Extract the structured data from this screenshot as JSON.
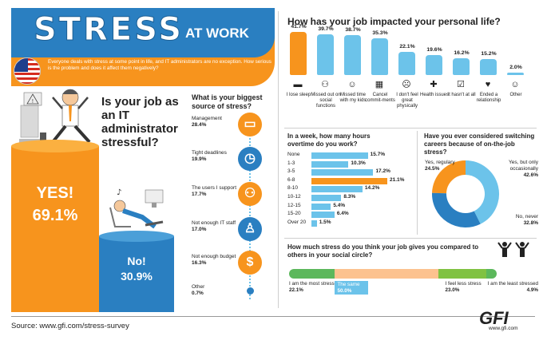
{
  "header": {
    "title_main": "STRESS",
    "title_sub": "AT WORK",
    "intro": "Everyone deals with stress at some point in life, and IT administrators are no exception. How serious is the problem and does it affect them negatively?"
  },
  "colors": {
    "orange": "#f7941d",
    "blue": "#2a7fc1",
    "light_blue": "#6cc3ea"
  },
  "source_text": "Source: www.gfi.com/stress-survey",
  "brand": {
    "logo": "GFI",
    "url": "www.gfi.com"
  },
  "chart_data": [
    {
      "type": "bar",
      "title": "Is your job as an IT administrator stressful?",
      "categories": [
        "YES!",
        "No!"
      ],
      "values": [
        69.1,
        30.9
      ],
      "value_labels": [
        "69.1%",
        "30.9%"
      ]
    },
    {
      "type": "table",
      "title": "What is your biggest source of stress?",
      "icons": [
        "laptop-icon",
        "clock-icon",
        "users-icon",
        "it-staff-icon",
        "money-bag-icon",
        "dot-icon"
      ],
      "rows": [
        {
          "label": "Management",
          "pct": "28.4%",
          "value": 28.4
        },
        {
          "label": "Tight deadlines",
          "pct": "19.9%",
          "value": 19.9
        },
        {
          "label": "The users I support",
          "pct": "17.7%",
          "value": 17.7
        },
        {
          "label": "Not enough IT staff",
          "pct": "17.0%",
          "value": 17.0
        },
        {
          "label": "Not enough budget",
          "pct": "16.3%",
          "value": 16.3
        },
        {
          "label": "Other",
          "pct": "0.7%",
          "value": 0.7
        }
      ]
    },
    {
      "type": "bar",
      "title": "How has your job impacted your personal life?",
      "categories": [
        "I lose sleep",
        "Missed out on social functions",
        "Missed time with my kids",
        "Cancel commit-ments",
        "I don't feel great physically",
        "Health issues",
        "It hasn't at all",
        "Ended a relationship",
        "Other"
      ],
      "values": [
        41.7,
        39.7,
        38.7,
        35.3,
        22.1,
        19.6,
        16.2,
        15.2,
        2.0
      ],
      "value_labels": [
        "41.7%",
        "39.7%",
        "38.7%",
        "35.3%",
        "22.1%",
        "19.6%",
        "16.2%",
        "15.2%",
        "2.0%"
      ],
      "icons": [
        "bed-icon",
        "people-icon",
        "baby-icon",
        "calendar-icon",
        "sick-face-icon",
        "health-cross-icon",
        "checkbox-icon",
        "broken-heart-icon",
        "smiley-icon"
      ],
      "highlight": "I lose sleep"
    },
    {
      "type": "bar",
      "orientation": "horizontal",
      "title": "In a week, how many hours overtime do you work?",
      "categories": [
        "None",
        "1-3",
        "3-5",
        "6-8",
        "8-10",
        "10-12",
        "12-15",
        "15-20",
        "Over 20"
      ],
      "values": [
        15.7,
        10.3,
        17.2,
        21.1,
        14.2,
        8.3,
        5.4,
        6.4,
        1.5
      ],
      "value_labels": [
        "15.7%",
        "10.3%",
        "17.2%",
        "21.1%",
        "14.2%",
        "8.3%",
        "5.4%",
        "6.4%",
        "1.5%"
      ],
      "highlight": "6-8"
    },
    {
      "type": "pie",
      "title": "Have you ever considered switching careers because of on-the-job stress?",
      "categories": [
        "Yes, regulary",
        "Yes, but only occasionally",
        "No, never"
      ],
      "values": [
        24.5,
        42.6,
        32.8
      ],
      "value_labels": [
        "24.5%",
        "42.6%",
        "32.8%"
      ]
    },
    {
      "type": "bar",
      "orientation": "stacked-horizontal",
      "title": "How much stress do you think your job gives you compared to others in your social circle?",
      "categories": [
        "I am the most stressed",
        "The same",
        "I feel less stress",
        "I am the least stressed"
      ],
      "values": [
        22.1,
        50.0,
        23.0,
        4.9
      ],
      "value_labels": [
        "22.1%",
        "50.0%",
        "23.0%",
        "4.9%"
      ]
    }
  ]
}
